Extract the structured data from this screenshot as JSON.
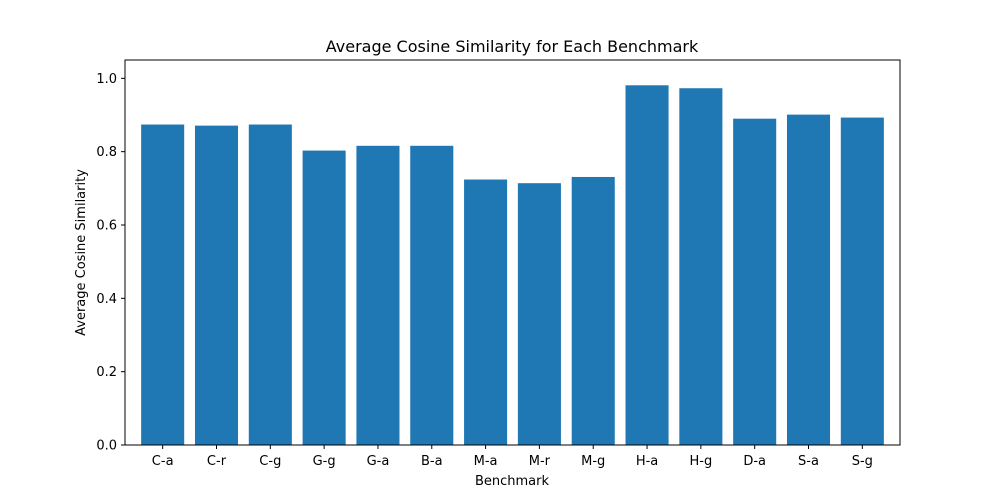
{
  "chart_data": {
    "type": "bar",
    "title": "Average Cosine Similarity for Each Benchmark",
    "xlabel": "Benchmark",
    "ylabel": "Average Cosine Similarity",
    "categories": [
      "C-a",
      "C-r",
      "C-g",
      "G-g",
      "G-a",
      "B-a",
      "M-a",
      "M-r",
      "M-g",
      "H-a",
      "H-g",
      "D-a",
      "S-a",
      "S-g"
    ],
    "values": [
      0.874,
      0.871,
      0.874,
      0.803,
      0.816,
      0.816,
      0.724,
      0.714,
      0.731,
      0.981,
      0.973,
      0.89,
      0.901,
      0.893
    ],
    "ylim": [
      0.0,
      1.05
    ],
    "yticks": [
      0.0,
      0.2,
      0.4,
      0.6,
      0.8,
      1.0
    ],
    "ytick_labels": [
      "0.0",
      "0.2",
      "0.4",
      "0.6",
      "0.8",
      "1.0"
    ],
    "grid": false,
    "bar_color": "#1f77b4"
  }
}
